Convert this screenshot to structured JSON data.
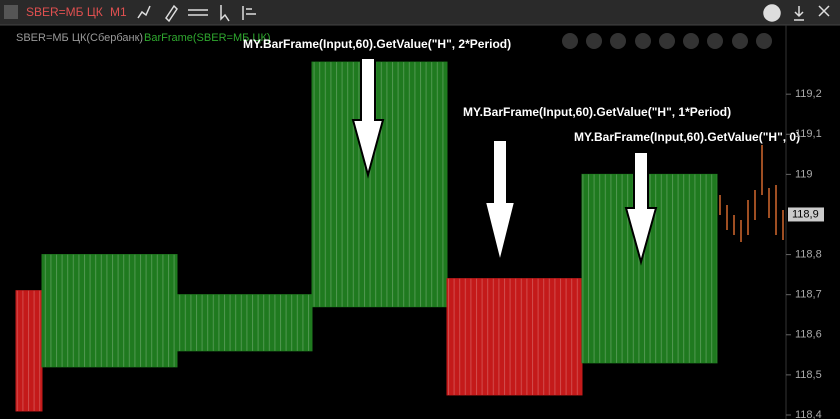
{
  "toolbar": {
    "symbol": "SBER=МБ ЦК",
    "timeframe": "M1"
  },
  "chart_data": {
    "type": "range",
    "legend": {
      "instrument": "SBER=МБ ЦК(Сбербанк)",
      "indicator": "BarFrame(SBER=МБ ЦК)"
    },
    "annotations": [
      "MY.BarFrame(Input,60).GetValue(\"H\", 2*Period)",
      "MY.BarFrame(Input,60).GetValue(\"H\", 1*Period)",
      "MY.BarFrame(Input,60).GetValue(\"H\", 0)"
    ],
    "series": [
      {
        "color": "#c41a1a",
        "high": 118.71,
        "low": 118.41
      },
      {
        "color": "#1f7a1f",
        "high": 118.8,
        "low": 118.52
      },
      {
        "color": "#1f7a1f",
        "high": 118.7,
        "low": 118.56
      },
      {
        "color": "#1f7a1f",
        "high": 119.28,
        "low": 118.67
      },
      {
        "color": "#c41a1a",
        "high": 118.74,
        "low": 118.45
      },
      {
        "color": "#1f7a1f",
        "high": 119.0,
        "low": 118.53
      }
    ],
    "ylim": [
      118.39,
      119.37
    ],
    "yticks": [
      {
        "value": 118.4,
        "label": "118,4"
      },
      {
        "value": 118.5,
        "label": "118,5"
      },
      {
        "value": 118.6,
        "label": "118,6"
      },
      {
        "value": 118.7,
        "label": "118,7"
      },
      {
        "value": 118.8,
        "label": "118,8"
      },
      {
        "value": 119.0,
        "label": "119"
      },
      {
        "value": 119.1,
        "label": "119,1"
      },
      {
        "value": 119.2,
        "label": "119,2"
      }
    ],
    "last_price": {
      "value": 118.9,
      "label": "118,9"
    }
  }
}
